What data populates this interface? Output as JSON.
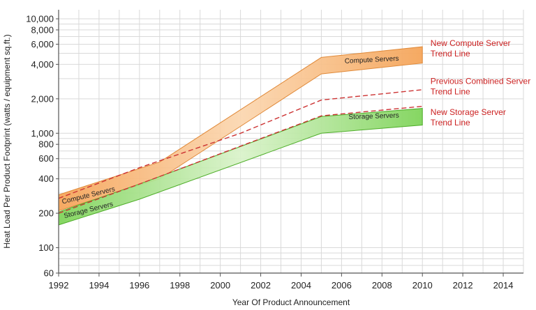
{
  "chart_data": {
    "type": "area",
    "xlabel": "Year Of Product Announcement",
    "ylabel": "Heat Load Per Product Footprint (watts / equipment sq.ft.)",
    "xlim": [
      1992,
      2015
    ],
    "ylim": [
      60,
      12000
    ],
    "yscale": "log",
    "grid": true,
    "x_ticks": [
      1992,
      1994,
      1996,
      1998,
      2000,
      2002,
      2004,
      2006,
      2008,
      2010,
      2012,
      2014
    ],
    "y_ticks": [
      {
        "value": 60,
        "label": "60"
      },
      {
        "value": 100,
        "label": "100"
      },
      {
        "value": 200,
        "label": "200"
      },
      {
        "value": 400,
        "label": "400"
      },
      {
        "value": 600,
        "label": "600"
      },
      {
        "value": 800,
        "label": "800"
      },
      {
        "value": 1000,
        "label": "1,000"
      },
      {
        "value": 2000,
        "label": "2,000"
      },
      {
        "value": 4000,
        "label": "4,000"
      },
      {
        "value": 6000,
        "label": "6,000"
      },
      {
        "value": 8000,
        "label": "8,000"
      },
      {
        "value": 10000,
        "label": "10,000"
      }
    ],
    "bands": [
      {
        "name": "Compute Servers",
        "color": "#f5a55a",
        "edge_color": "#e08a3a",
        "upper": [
          [
            1992,
            290
          ],
          [
            1997,
            560
          ],
          [
            2005,
            4600
          ],
          [
            2010,
            5700
          ]
        ],
        "lower": [
          [
            1992,
            210
          ],
          [
            1997,
            400
          ],
          [
            2005,
            3300
          ],
          [
            2010,
            4100
          ]
        ],
        "labels": [
          {
            "text": "Compute Servers",
            "x": 1993.5,
            "y": 275,
            "rotate": -14
          },
          {
            "text": "Compute Servers",
            "x": 2007.5,
            "y": 4200,
            "rotate": -3
          }
        ]
      },
      {
        "name": "Storage Servers",
        "color": "#7fd45a",
        "edge_color": "#4fae2a",
        "upper": [
          [
            1992,
            205
          ],
          [
            1996,
            360
          ],
          [
            2005,
            1400
          ],
          [
            2010,
            1650
          ]
        ],
        "lower": [
          [
            1992,
            158
          ],
          [
            1996,
            265
          ],
          [
            2005,
            1000
          ],
          [
            2010,
            1180
          ]
        ],
        "labels": [
          {
            "text": "Storage Servers",
            "x": 1993.5,
            "y": 205,
            "rotate": -14
          },
          {
            "text": "Storage Servers",
            "x": 2007.6,
            "y": 1350,
            "rotate": -2
          }
        ]
      }
    ],
    "trend_lines": [
      {
        "name": "New Compute Server Trend Line",
        "color": "#cc3333",
        "points": [
          [
            1992,
            270
          ],
          [
            1996,
            500
          ],
          [
            2001,
            1000
          ],
          [
            2005,
            1950
          ],
          [
            2010,
            2400
          ]
        ]
      },
      {
        "name": "New Storage Server Trend Line",
        "color": "#cc3333",
        "points": [
          [
            1992,
            200
          ],
          [
            1996,
            360
          ],
          [
            2005,
            1420
          ],
          [
            2010,
            1720
          ]
        ]
      }
    ],
    "annotations": [
      {
        "lines": [
          "New Compute Server",
          "Trend Line"
        ],
        "x": 2010.4,
        "y": 5800
      },
      {
        "lines": [
          "Previous Combined Server",
          "Trend Line"
        ],
        "x": 2010.4,
        "y": 2700
      },
      {
        "lines": [
          "New Storage Server",
          "Trend Line"
        ],
        "x": 2010.4,
        "y": 1450
      }
    ]
  }
}
